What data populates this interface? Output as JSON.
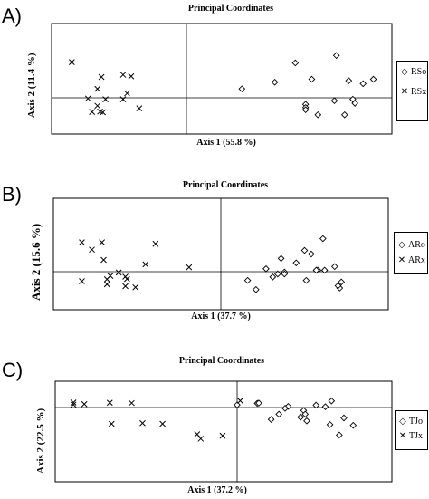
{
  "panels": [
    {
      "letter": "A)",
      "title": "Principal Coordinates",
      "xlabel": "Axis 1 (55.8 %)",
      "ylabel": "Axis 2 (11.4 %)",
      "legend": [
        {
          "label": "RSo",
          "marker": "diamond"
        },
        {
          "label": "RSx",
          "marker": "x"
        }
      ]
    },
    {
      "letter": "B)",
      "title": "Principal Coordinates",
      "xlabel": "Axis 1 (37.7 %)",
      "ylabel": "Axis 2 (15.6 %)",
      "legend": [
        {
          "label": "ARo",
          "marker": "diamond"
        },
        {
          "label": "ARx",
          "marker": "x"
        }
      ]
    },
    {
      "letter": "C)",
      "title": "Principal Coordinates",
      "xlabel": "Axis 1 (37.2 %)",
      "ylabel": "Axis 2 (22.5 %)",
      "legend": [
        {
          "label": "TJo",
          "marker": "diamond"
        },
        {
          "label": "TJx",
          "marker": "x"
        }
      ]
    }
  ],
  "chart_data": [
    {
      "type": "scatter",
      "title": "Principal Coordinates",
      "xlabel": "Axis 1 (55.8 %)",
      "ylabel": "Axis 2 (11.4 %)",
      "xlim": [
        -1,
        1
      ],
      "ylim": [
        -1,
        1
      ],
      "grid": false,
      "legend_position": "right",
      "series": [
        {
          "name": "RSo",
          "marker": "diamond",
          "x": [
            0.53,
            0.73,
            0.86,
            0.61,
            0.27,
            0.43,
            0.79,
            0.81,
            0.72,
            0.91,
            0.58,
            0.82,
            0.58,
            0.58,
            0.64,
            0.77
          ],
          "y": [
            0.47,
            0.57,
            0.19,
            0.25,
            0.12,
            0.21,
            0.23,
            -0.04,
            -0.08,
            0.25,
            -0.18,
            -0.15,
            -0.27,
            -0.33,
            -0.47,
            -0.47
          ]
        },
        {
          "name": "RSx",
          "marker": "x",
          "x": [
            -0.85,
            -0.63,
            -0.47,
            -0.41,
            -0.73,
            -0.6,
            -0.47,
            -0.44,
            -0.66,
            -0.66,
            -0.64,
            -0.62,
            -0.7,
            -0.35
          ],
          "y": [
            0.48,
            0.28,
            0.31,
            0.29,
            -0.02,
            -0.04,
            -0.04,
            0.06,
            0.12,
            -0.22,
            -0.38,
            -0.4,
            -0.39,
            -0.29
          ]
        }
      ]
    },
    {
      "type": "scatter",
      "title": "Principal Coordinates",
      "xlabel": "Axis 1 (37.7 %)",
      "ylabel": "Axis 2 (15.6 %)",
      "xlim": [
        -1,
        1
      ],
      "ylim": [
        -1,
        1
      ],
      "grid": false,
      "legend_position": "right",
      "series": [
        {
          "name": "ARo",
          "marker": "diamond",
          "x": [
            0.61,
            0.5,
            0.54,
            0.36,
            0.45,
            0.58,
            0.68,
            0.57,
            0.27,
            0.34,
            0.62,
            0.72,
            0.38,
            0.38,
            0.16,
            0.31,
            0.51,
            0.71,
            0.21,
            0.7
          ],
          "y": [
            0.45,
            0.29,
            0.24,
            0.18,
            0.12,
            0.02,
            0.07,
            0.02,
            0.04,
            -0.06,
            0.02,
            -0.27,
            -0.01,
            -0.06,
            -0.23,
            -0.14,
            -0.23,
            -0.43,
            -0.47,
            -0.37
          ]
        },
        {
          "name": "ARx",
          "marker": "x",
          "x": [
            -0.83,
            -0.7,
            -0.39,
            -0.77,
            -0.45,
            -0.19,
            -0.66,
            -0.68,
            -0.61,
            -0.56,
            -0.57,
            -0.68,
            -0.83,
            -0.57,
            -0.51,
            -0.71
          ],
          "y": [
            0.4,
            0.16,
            0.38,
            0.3,
            0.1,
            0.06,
            -0.11,
            -0.2,
            -0.02,
            -0.19,
            -0.38,
            -0.33,
            -0.25,
            -0.13,
            -0.41,
            0.4
          ]
        }
      ]
    },
    {
      "type": "scatter",
      "title": "Principal Coordinates",
      "xlabel": "Axis 1 (37.2 %)",
      "ylabel": "Axis 2 (22.5 %)",
      "xlim": [
        -1,
        1
      ],
      "ylim": [
        -1,
        1
      ],
      "grid": false,
      "legend_position": "right",
      "series": [
        {
          "name": "TJo",
          "marker": "diamond",
          "x": [
            0.13,
            0.14,
            0.61,
            0.0,
            0.51,
            0.33,
            0.31,
            0.27,
            0.43,
            0.44,
            0.45,
            0.57,
            0.69,
            0.6,
            0.75,
            0.22,
            0.66,
            0.41
          ],
          "y": [
            0.16,
            0.17,
            0.25,
            0.1,
            0.09,
            0.04,
            -0.01,
            -0.09,
            -0.04,
            -0.09,
            -0.18,
            0.03,
            -0.14,
            -0.23,
            -0.24,
            -0.16,
            -0.37,
            -0.13
          ]
        },
        {
          "name": "TJx",
          "marker": "x",
          "x": [
            -0.9,
            -0.84,
            -0.9,
            -0.7,
            -0.58,
            -0.52,
            -0.69,
            -0.41,
            -0.22,
            -0.2,
            -0.08,
            0.02
          ],
          "y": [
            0.19,
            0.13,
            0.11,
            0.18,
            0.17,
            -0.21,
            -0.22,
            -0.22,
            -0.36,
            -0.42,
            -0.38,
            0.26
          ]
        }
      ]
    }
  ]
}
